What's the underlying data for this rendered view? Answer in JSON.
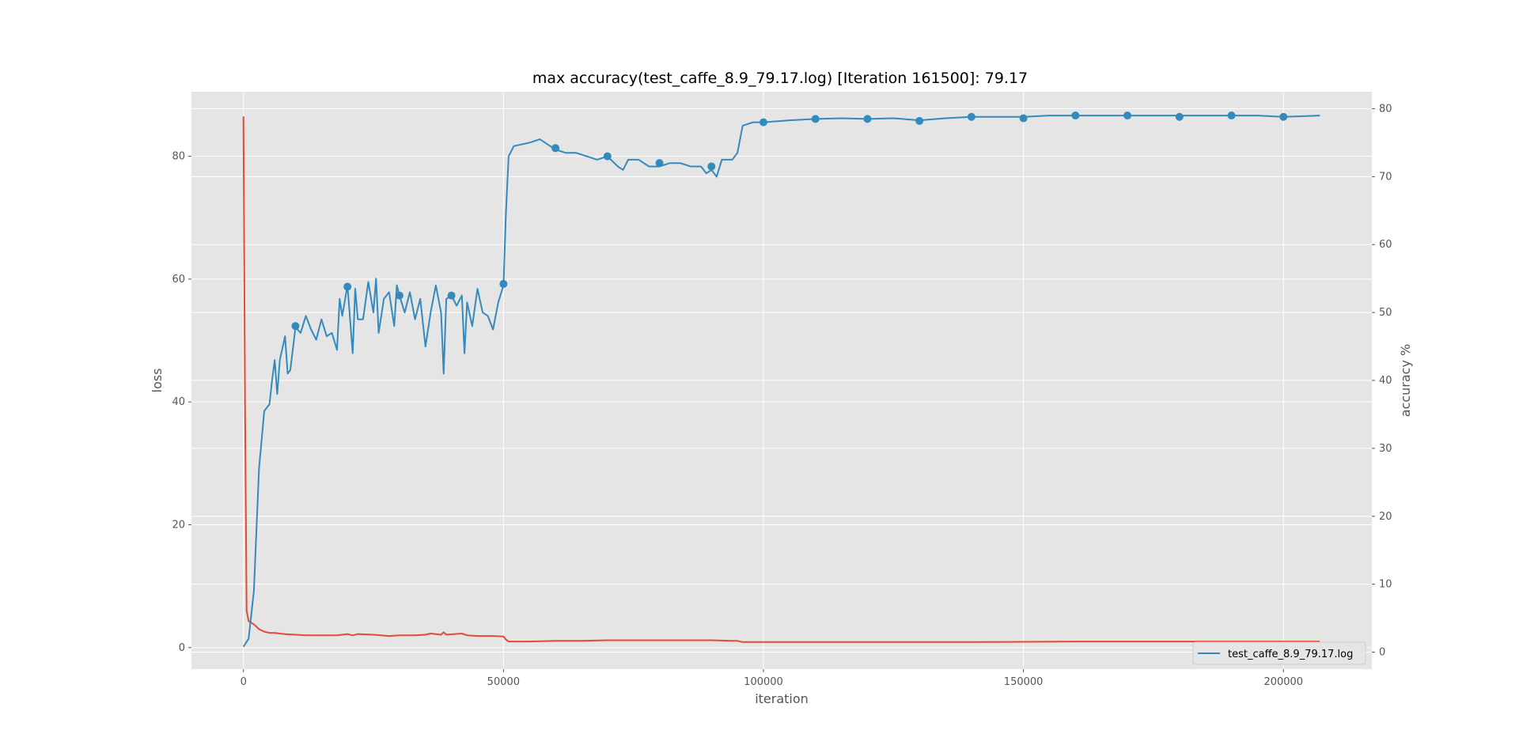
{
  "chart_data": {
    "type": "line",
    "title": "max accuracy(test_caffe_8.9_79.17.log) [Iteration 161500]: 79.17",
    "xlabel": "iteration",
    "ylabel": "loss",
    "y2label": "accuracy %",
    "xlim": [
      -10000,
      217000
    ],
    "ylim": [
      -3.5,
      90.5
    ],
    "y2lim": [
      -2.5,
      82.5
    ],
    "xticks": [
      0,
      50000,
      100000,
      150000,
      200000
    ],
    "xtick_labels": [
      "0",
      "50000",
      "100000",
      "150000",
      "200000"
    ],
    "yticks": [
      0,
      20,
      40,
      60,
      80
    ],
    "ytick_labels": [
      "0",
      "20",
      "40",
      "60",
      "80"
    ],
    "y2ticks": [
      0,
      10,
      20,
      30,
      40,
      50,
      60,
      70,
      80
    ],
    "y2tick_labels": [
      "0",
      "10",
      "20",
      "30",
      "40",
      "50",
      "60",
      "70",
      "80"
    ],
    "grid": true,
    "legend_position": "lower-right",
    "legend": [
      "test_caffe_8.9_79.17.log"
    ],
    "colors": {
      "accuracy": "#348abd",
      "loss": "#e24a33",
      "plot_bg": "#e5e5e5",
      "grid": "#ffffff"
    },
    "series": [
      {
        "name": "test_caffe_8.9_79.17.log",
        "axis": "right",
        "x": [
          0,
          1000,
          2000,
          3000,
          4000,
          5000,
          5500,
          6000,
          6500,
          7000,
          8000,
          8500,
          9000,
          10000,
          11000,
          12000,
          13000,
          14000,
          15000,
          16000,
          17000,
          18000,
          18500,
          19000,
          20000,
          21000,
          21500,
          22000,
          23000,
          24000,
          25000,
          25500,
          26000,
          27000,
          28000,
          29000,
          29500,
          30000,
          31000,
          32000,
          33000,
          34000,
          35000,
          36000,
          37000,
          38000,
          38500,
          39000,
          40000,
          41000,
          42000,
          42500,
          43000,
          44000,
          45000,
          46000,
          47000,
          48000,
          49000,
          50000,
          50500,
          51000,
          52000,
          55000,
          57000,
          58000,
          60000,
          62000,
          64000,
          66000,
          68000,
          70000,
          72000,
          73000,
          74000,
          76000,
          78000,
          80000,
          82000,
          84000,
          86000,
          88000,
          89000,
          90000,
          91000,
          92000,
          94000,
          95000,
          96000,
          98000,
          100000,
          105000,
          110000,
          115000,
          120000,
          125000,
          130000,
          135000,
          140000,
          145000,
          150000,
          155000,
          160000,
          165000,
          170000,
          175000,
          180000,
          185000,
          190000,
          195000,
          200000,
          207000
        ],
        "y": [
          0.8,
          2.0,
          9.0,
          27.0,
          35.5,
          36.5,
          40.0,
          43.0,
          38.0,
          43.0,
          46.5,
          41.0,
          41.5,
          47.8,
          47.0,
          49.5,
          47.5,
          46.0,
          49.0,
          46.5,
          47.0,
          44.5,
          52.0,
          49.5,
          54.0,
          44.0,
          53.5,
          49.0,
          49.0,
          54.5,
          50.0,
          55.0,
          47.0,
          52.0,
          53.0,
          48.0,
          54.0,
          52.5,
          50.0,
          53.0,
          49.0,
          52.0,
          45.0,
          50.0,
          54.0,
          50.0,
          41.0,
          52.0,
          52.5,
          51.0,
          52.5,
          44.0,
          51.5,
          48.0,
          53.5,
          50.0,
          49.5,
          47.5,
          51.5,
          54.0,
          65.0,
          73.0,
          74.5,
          75.0,
          75.5,
          75.0,
          74.0,
          73.5,
          73.5,
          73.0,
          72.5,
          73.0,
          71.5,
          71.0,
          72.5,
          72.5,
          71.5,
          71.5,
          72.0,
          72.0,
          71.5,
          71.5,
          70.5,
          71.0,
          70.0,
          72.5,
          72.5,
          73.5,
          77.5,
          78.0,
          78.0,
          78.3,
          78.5,
          78.6,
          78.5,
          78.6,
          78.3,
          78.6,
          78.8,
          78.8,
          78.8,
          79.0,
          79.0,
          79.0,
          79.0,
          79.0,
          79.0,
          79.0,
          79.0,
          79.0,
          78.8,
          79.0
        ]
      },
      {
        "name": "loss",
        "axis": "left",
        "x": [
          0,
          300,
          600,
          1000,
          2000,
          3000,
          4000,
          5000,
          6000,
          8000,
          10000,
          12000,
          15000,
          18000,
          20000,
          21000,
          22000,
          25000,
          28000,
          30000,
          33000,
          35000,
          36000,
          38000,
          38500,
          39000,
          42000,
          43000,
          45000,
          48000,
          50000,
          50500,
          51000,
          55000,
          60000,
          65000,
          70000,
          75000,
          80000,
          85000,
          90000,
          94000,
          95000,
          96000,
          100000,
          110000,
          120000,
          140000,
          160000,
          180000,
          200000,
          207000
        ],
        "y": [
          86.5,
          40.0,
          6.0,
          4.3,
          3.8,
          3.0,
          2.6,
          2.4,
          2.4,
          2.2,
          2.1,
          2.0,
          2.0,
          2.0,
          2.2,
          2.0,
          2.2,
          2.1,
          1.9,
          2.0,
          2.0,
          2.1,
          2.3,
          2.1,
          2.5,
          2.1,
          2.3,
          2.0,
          1.9,
          1.9,
          1.8,
          1.3,
          1.0,
          1.0,
          1.1,
          1.1,
          1.2,
          1.2,
          1.2,
          1.2,
          1.2,
          1.1,
          1.1,
          0.9,
          0.9,
          0.9,
          0.9,
          0.9,
          1.0,
          1.0,
          1.0,
          1.0
        ]
      }
    ],
    "markers": {
      "x": [
        10000,
        20000,
        30000,
        40000,
        50000,
        60000,
        70000,
        80000,
        90000,
        100000,
        110000,
        120000,
        130000,
        140000,
        150000,
        160000,
        170000,
        180000,
        190000,
        200000
      ],
      "y": [
        48.0,
        53.8,
        52.5,
        52.5,
        54.2,
        74.2,
        73.0,
        72.0,
        71.5,
        78.0,
        78.5,
        78.5,
        78.2,
        78.8,
        78.6,
        79.0,
        79.0,
        78.8,
        79.0,
        78.8
      ]
    }
  }
}
